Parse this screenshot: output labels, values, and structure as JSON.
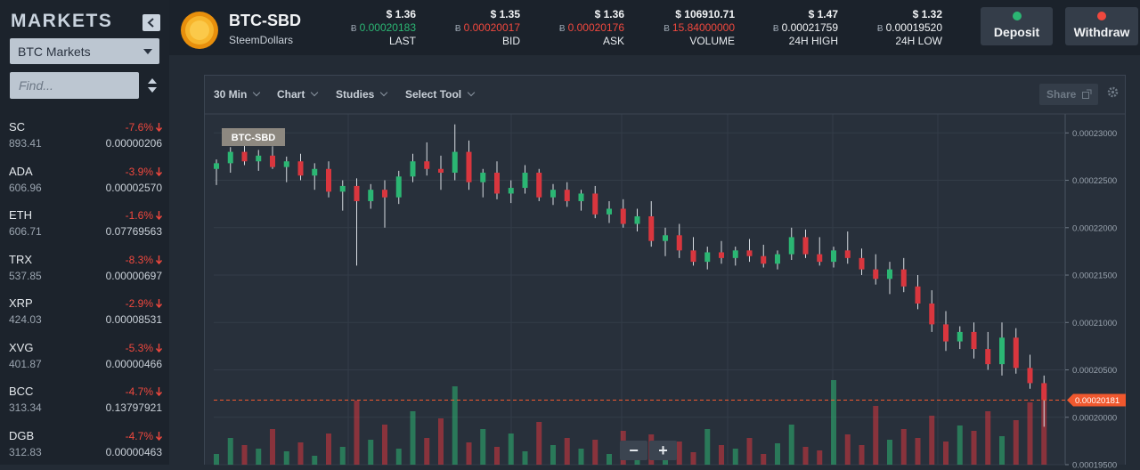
{
  "sidebar": {
    "title": "MARKETS",
    "market_select": "BTC Markets",
    "search_placeholder": "Find...",
    "markets": [
      {
        "name": "SC",
        "change": "-7.6%",
        "volume": "893.41",
        "price": "0.00000206"
      },
      {
        "name": "ADA",
        "change": "-3.9%",
        "volume": "606.96",
        "price": "0.00002570"
      },
      {
        "name": "ETH",
        "change": "-1.6%",
        "volume": "606.71",
        "price": "0.07769563"
      },
      {
        "name": "TRX",
        "change": "-8.3%",
        "volume": "537.85",
        "price": "0.00000697"
      },
      {
        "name": "XRP",
        "change": "-2.9%",
        "volume": "424.03",
        "price": "0.00008531"
      },
      {
        "name": "XVG",
        "change": "-5.3%",
        "volume": "401.87",
        "price": "0.00000466"
      },
      {
        "name": "BCC",
        "change": "-4.7%",
        "volume": "313.34",
        "price": "0.13797921"
      },
      {
        "name": "DGB",
        "change": "-4.7%",
        "volume": "312.83",
        "price": "0.00000463"
      }
    ]
  },
  "header": {
    "symbol": "BTC-SBD",
    "name": "SteemDollars",
    "currency_symbol": "Ƀ",
    "stats": [
      {
        "usd": "$ 1.36",
        "btc": "0.00020183",
        "label": "LAST",
        "color": "#2bb673"
      },
      {
        "usd": "$ 1.35",
        "btc": "0.00020017",
        "label": "BID",
        "color": "#f0483e"
      },
      {
        "usd": "$ 1.36",
        "btc": "0.00020176",
        "label": "ASK",
        "color": "#f0483e"
      },
      {
        "usd": "$ 106910.71",
        "btc": "15.84000000",
        "label": "VOLUME",
        "color": "#f0483e"
      },
      {
        "usd": "$ 1.47",
        "btc": "0.00021759",
        "label": "24H HIGH",
        "color": "#f1f3f5"
      },
      {
        "usd": "$ 1.32",
        "btc": "0.00019520",
        "label": "24H LOW",
        "color": "#f1f3f5"
      }
    ],
    "buttons": [
      "Deposit",
      "Withdraw"
    ]
  },
  "toolbar": {
    "items": [
      "30 Min",
      "Chart",
      "Studies",
      "Select Tool"
    ],
    "share": "Share",
    "zoom": [
      "−",
      "+"
    ]
  },
  "chart_data": {
    "type": "candlestick",
    "label": "BTC-SBD",
    "up_color": "#2bb673",
    "down_color": "#d9363e",
    "ylim": [
      0.000195,
      0.000232
    ],
    "yticks": [
      {
        "value": 0.00023,
        "label": "0.00023000"
      },
      {
        "value": 0.000225,
        "label": "0.00022500"
      },
      {
        "value": 0.00022,
        "label": "0.00022000"
      },
      {
        "value": 0.000215,
        "label": "0.00021500"
      },
      {
        "value": 0.00021,
        "label": "0.00021000"
      },
      {
        "value": 0.000205,
        "label": "0.00020500"
      },
      {
        "value": 0.0002,
        "label": "0.00020000"
      },
      {
        "value": 0.000195,
        "label": "0.00019500"
      }
    ],
    "grid": true,
    "last_price": {
      "value": 0.00020181,
      "label": "0.00020181"
    },
    "open": [
      0.0002262,
      0.0002268,
      0.000228,
      0.000227,
      0.0002276,
      0.0002264,
      0.000227,
      0.0002255,
      0.0002262,
      0.0002238,
      0.0002244,
      0.0002228,
      0.000224,
      0.0002232,
      0.0002254,
      0.000227,
      0.0002262,
      0.0002258,
      0.000228,
      0.0002248,
      0.0002258,
      0.0002236,
      0.0002242,
      0.0002258,
      0.0002232,
      0.000224,
      0.0002228,
      0.0002236,
      0.0002214,
      0.000222,
      0.0002204,
      0.0002212,
      0.0002186,
      0.0002192,
      0.0002176,
      0.0002164,
      0.0002174,
      0.0002168,
      0.0002176,
      0.000217,
      0.0002162,
      0.0002172,
      0.000219,
      0.0002172,
      0.0002164,
      0.0002176,
      0.0002168,
      0.0002156,
      0.0002146,
      0.0002156,
      0.0002138,
      0.000212,
      0.0002098,
      0.000208,
      0.000209,
      0.0002072,
      0.0002056,
      0.0002084,
      0.0002052,
      0.0002036
    ],
    "high": [
      0.0002272,
      0.0002285,
      0.0002288,
      0.0002282,
      0.0002286,
      0.0002275,
      0.0002278,
      0.0002268,
      0.000227,
      0.000225,
      0.0002252,
      0.0002246,
      0.000225,
      0.000226,
      0.0002278,
      0.000229,
      0.0002276,
      0.0002309,
      0.0002292,
      0.0002262,
      0.000227,
      0.000225,
      0.0002266,
      0.0002262,
      0.0002246,
      0.0002248,
      0.000224,
      0.0002244,
      0.0002228,
      0.000223,
      0.000222,
      0.0002228,
      0.00022,
      0.0002204,
      0.000219,
      0.000218,
      0.0002186,
      0.000218,
      0.0002188,
      0.0002182,
      0.0002176,
      0.00022,
      0.0002198,
      0.000219,
      0.000218,
      0.0002196,
      0.0002178,
      0.0002172,
      0.0002164,
      0.0002168,
      0.000215,
      0.0002134,
      0.0002112,
      0.0002096,
      0.00021,
      0.000209,
      0.00021,
      0.0002094,
      0.0002066,
      0.0002044
    ],
    "low": [
      0.0002245,
      0.0002258,
      0.0002266,
      0.000226,
      0.0002262,
      0.0002248,
      0.000225,
      0.000224,
      0.0002232,
      0.0002218,
      0.000216,
      0.000222,
      0.00022,
      0.0002225,
      0.0002248,
      0.0002255,
      0.000224,
      0.000225,
      0.000224,
      0.0002232,
      0.000223,
      0.0002226,
      0.0002236,
      0.0002228,
      0.0002224,
      0.0002222,
      0.0002218,
      0.000221,
      0.0002205,
      0.00022,
      0.0002196,
      0.000218,
      0.000217,
      0.0002168,
      0.000216,
      0.0002156,
      0.0002162,
      0.000216,
      0.0002164,
      0.0002158,
      0.0002156,
      0.0002166,
      0.0002168,
      0.000216,
      0.0002158,
      0.0002162,
      0.000215,
      0.000214,
      0.000213,
      0.0002132,
      0.0002114,
      0.000209,
      0.000207,
      0.0002072,
      0.0002062,
      0.000205,
      0.0002044,
      0.0002046,
      0.000203,
      0.000199
    ],
    "close": [
      0.0002268,
      0.000228,
      0.000227,
      0.0002276,
      0.0002264,
      0.000227,
      0.0002255,
      0.0002262,
      0.0002238,
      0.0002244,
      0.0002228,
      0.000224,
      0.0002232,
      0.0002254,
      0.000227,
      0.0002262,
      0.0002258,
      0.000228,
      0.0002248,
      0.0002258,
      0.0002236,
      0.0002242,
      0.0002258,
      0.0002232,
      0.000224,
      0.0002228,
      0.0002236,
      0.0002214,
      0.000222,
      0.0002204,
      0.0002212,
      0.0002186,
      0.0002192,
      0.0002176,
      0.0002164,
      0.0002174,
      0.0002168,
      0.0002176,
      0.000217,
      0.0002162,
      0.0002172,
      0.000219,
      0.0002172,
      0.0002164,
      0.0002176,
      0.0002168,
      0.0002156,
      0.0002146,
      0.0002156,
      0.0002138,
      0.000212,
      0.0002098,
      0.000208,
      0.000209,
      0.0002072,
      0.0002056,
      0.0002084,
      0.0002052,
      0.0002036,
      0.00020183
    ],
    "volume": [
      12,
      30,
      22,
      18,
      40,
      15,
      25,
      10,
      35,
      20,
      72,
      28,
      45,
      18,
      60,
      30,
      52,
      88,
      25,
      40,
      20,
      35,
      15,
      48,
      22,
      30,
      18,
      28,
      12,
      38,
      20,
      34,
      16,
      26,
      14,
      40,
      22,
      18,
      30,
      12,
      24,
      45,
      20,
      16,
      95,
      34,
      22,
      66,
      28,
      40,
      30,
      55,
      26,
      44,
      38,
      60,
      32,
      50,
      70,
      85
    ]
  }
}
